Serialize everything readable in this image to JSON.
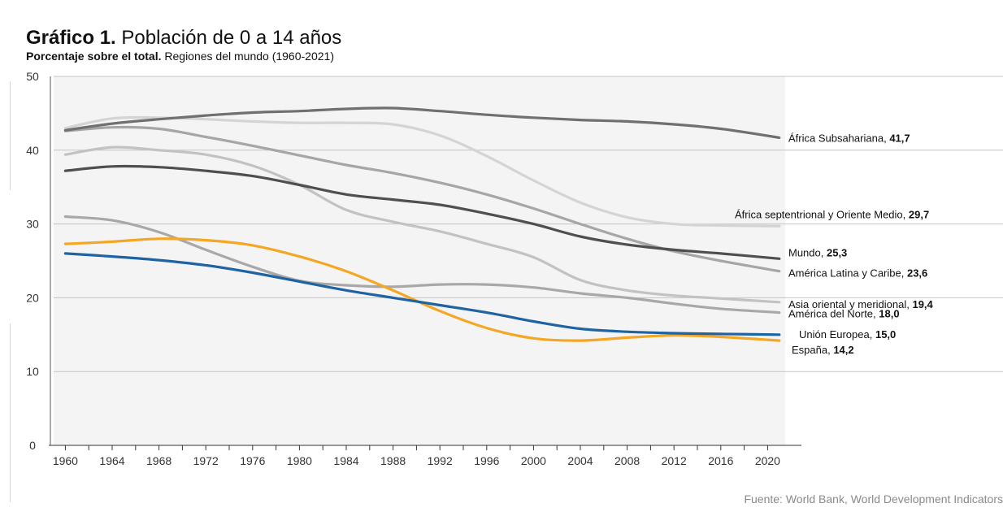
{
  "title": {
    "bold": "Gráfico 1.",
    "text": "Población de 0 a 14 años"
  },
  "subtitle": {
    "bold": "Porcentaje sobre el total.",
    "text": "Regiones del mundo (1960-2021)"
  },
  "source": "Fuente: World Bank, World Development Indicators",
  "chart_data": {
    "type": "line",
    "xlim": [
      1959,
      2021.5
    ],
    "ylim": [
      0,
      50
    ],
    "y_ticks": [
      0,
      10,
      20,
      30,
      40,
      50
    ],
    "x_ticks": [
      1960,
      1964,
      1968,
      1972,
      1976,
      1980,
      1984,
      1988,
      1992,
      1996,
      2000,
      2004,
      2008,
      2012,
      2016,
      2020
    ],
    "grid": true,
    "series": [
      {
        "name": "África Subsahariana",
        "label_value": "41,7",
        "color": "#707070",
        "x": [
          1960,
          1964,
          1968,
          1972,
          1976,
          1980,
          1984,
          1988,
          1992,
          1996,
          2000,
          2004,
          2008,
          2012,
          2016,
          2021
        ],
        "y": [
          42.7,
          43.6,
          44.2,
          44.7,
          45.1,
          45.3,
          45.6,
          45.7,
          45.3,
          44.8,
          44.4,
          44.1,
          43.9,
          43.5,
          42.9,
          41.7
        ]
      },
      {
        "name": "África septentrional y Oriente Medio",
        "label_value": "29,7",
        "color": "#d4d4d4",
        "x": [
          1960,
          1964,
          1968,
          1972,
          1976,
          1980,
          1984,
          1988,
          1992,
          1996,
          2000,
          2004,
          2008,
          2012,
          2016,
          2021
        ],
        "y": [
          43.0,
          44.3,
          44.4,
          44.2,
          43.9,
          43.7,
          43.7,
          43.5,
          42.0,
          39.2,
          35.9,
          32.9,
          30.9,
          30.0,
          29.8,
          29.7
        ]
      },
      {
        "name": "Mundo",
        "label_value": "25,3",
        "color": "#4f4f4f",
        "x": [
          1960,
          1964,
          1968,
          1972,
          1976,
          1980,
          1984,
          1988,
          1992,
          1996,
          2000,
          2004,
          2008,
          2012,
          2016,
          2021
        ],
        "y": [
          37.2,
          37.8,
          37.7,
          37.2,
          36.5,
          35.3,
          34.0,
          33.3,
          32.6,
          31.4,
          30.0,
          28.3,
          27.2,
          26.5,
          26.0,
          25.3
        ]
      },
      {
        "name": "América Latina y Caribe",
        "label_value": "23,6",
        "color": "#a6a6a6",
        "x": [
          1960,
          1964,
          1968,
          1972,
          1976,
          1980,
          1984,
          1988,
          1992,
          1996,
          2000,
          2004,
          2008,
          2012,
          2016,
          2021
        ],
        "y": [
          42.6,
          43.1,
          42.9,
          41.8,
          40.6,
          39.3,
          38.0,
          36.9,
          35.6,
          34.0,
          32.1,
          30.0,
          28.0,
          26.3,
          25.0,
          23.6
        ]
      },
      {
        "name": "Asia oriental y meridional",
        "label_value": "19,4",
        "color": "#c2c2c2",
        "x": [
          1960,
          1964,
          1968,
          1972,
          1976,
          1980,
          1984,
          1988,
          1992,
          1996,
          2000,
          2004,
          2008,
          2012,
          2016,
          2021
        ],
        "y": [
          39.4,
          40.4,
          40.0,
          39.4,
          37.9,
          35.3,
          31.9,
          30.3,
          29.0,
          27.3,
          25.5,
          22.4,
          21.0,
          20.3,
          19.9,
          19.4
        ]
      },
      {
        "name": "América del Norte",
        "label_value": "18,0",
        "color": "#a8a8a8",
        "x": [
          1960,
          1964,
          1968,
          1972,
          1976,
          1980,
          1984,
          1988,
          1992,
          1996,
          2000,
          2004,
          2008,
          2012,
          2016,
          2021
        ],
        "y": [
          31.0,
          30.5,
          28.9,
          26.5,
          24.2,
          22.3,
          21.7,
          21.5,
          21.8,
          21.8,
          21.4,
          20.6,
          20.0,
          19.2,
          18.5,
          18.0
        ]
      },
      {
        "name": "Unión Europea",
        "label_value": "15,0",
        "color": "#1f63a3",
        "x": [
          1960,
          1964,
          1968,
          1972,
          1976,
          1980,
          1984,
          1988,
          1992,
          1996,
          2000,
          2004,
          2008,
          2012,
          2016,
          2021
        ],
        "y": [
          26.0,
          25.6,
          25.1,
          24.4,
          23.4,
          22.2,
          21.0,
          20.0,
          19.0,
          18.0,
          16.8,
          15.8,
          15.4,
          15.2,
          15.1,
          15.0
        ]
      },
      {
        "name": "España",
        "label_value": "14,2",
        "color": "#f5a623",
        "x": [
          1960,
          1964,
          1968,
          1972,
          1976,
          1980,
          1984,
          1988,
          1992,
          1996,
          2000,
          2004,
          2008,
          2012,
          2016,
          2021
        ],
        "y": [
          27.3,
          27.6,
          28.0,
          27.8,
          27.1,
          25.6,
          23.6,
          21.0,
          18.2,
          15.9,
          14.5,
          14.2,
          14.6,
          14.9,
          14.7,
          14.2
        ]
      }
    ]
  }
}
